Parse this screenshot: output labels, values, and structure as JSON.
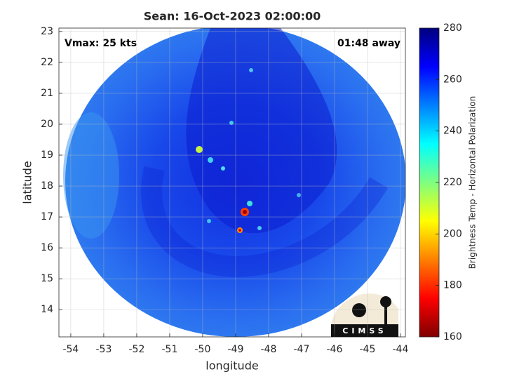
{
  "chart_data": {
    "type": "map",
    "title": "Sean: 16-Oct-2023 02:00:00",
    "annotations": [
      "Vmax: 25 kts",
      "01:48 away"
    ],
    "x_label": "longitude",
    "y_label": "latitude",
    "xlim": [
      -54.36,
      -43.85
    ],
    "ylim": [
      13.12,
      23.11
    ],
    "xticks": [
      -54,
      -53,
      -52,
      -51,
      -50,
      -49,
      -48,
      -47,
      -46,
      -45,
      -44
    ],
    "yticks": [
      14,
      15,
      16,
      17,
      18,
      19,
      20,
      21,
      22,
      23
    ],
    "grid": true,
    "colorbar": {
      "label": "Brightness Temp - Horizontal Polarization",
      "lim": [
        160,
        280
      ],
      "ticks": [
        160,
        180,
        200,
        220,
        240,
        260,
        280
      ]
    },
    "logo": "CIMSS"
  }
}
